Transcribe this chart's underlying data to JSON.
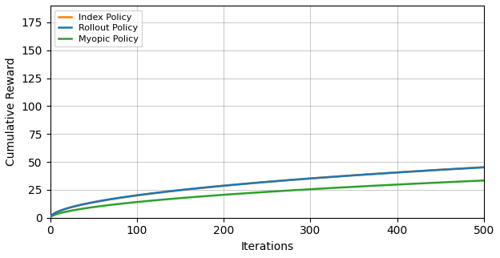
{
  "title": "",
  "xlabel": "Iterations",
  "ylabel": "Cumulative Reward",
  "xlim": [
    0,
    500
  ],
  "ylim": [
    0,
    190
  ],
  "yticks": [
    0,
    25,
    50,
    75,
    100,
    125,
    150,
    175
  ],
  "xticks": [
    0,
    100,
    200,
    300,
    400,
    500
  ],
  "rollout_color": "#1f77b4",
  "index_color": "#ff7f0e",
  "myopic_color": "#2ca02c",
  "rollout_label": "Rollout Policy",
  "index_label": "Index Policy",
  "myopic_label": "Myopic Policy",
  "rollout_params": {
    "a": 188,
    "b": 0.009,
    "c": 0.55
  },
  "index_params": {
    "a": 188,
    "b": 0.0085,
    "c": 0.56
  },
  "myopic_params": {
    "a": 157,
    "b": 0.0065,
    "c": 0.58
  },
  "line_width": 1.8,
  "figsize": [
    6.24,
    3.22
  ],
  "dpi": 100
}
